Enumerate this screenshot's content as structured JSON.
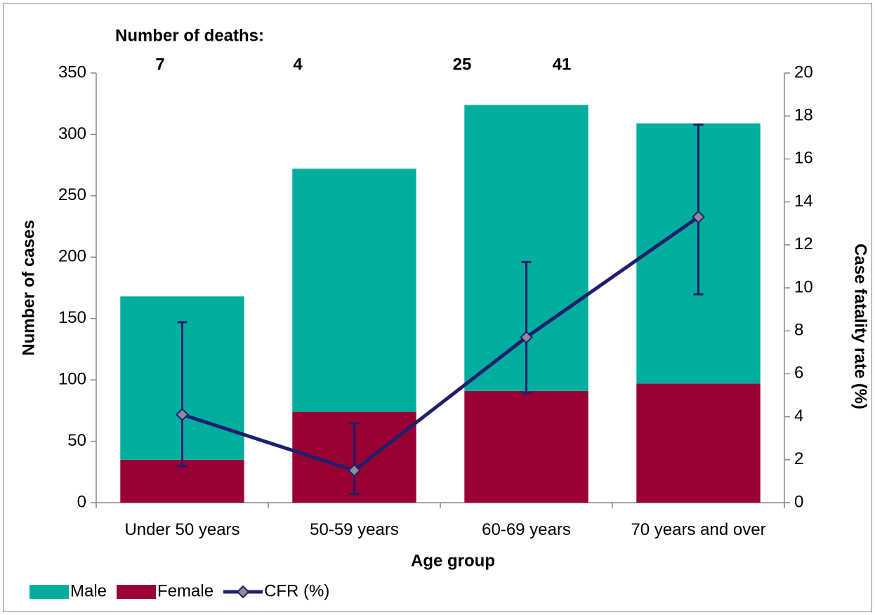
{
  "chart_data": {
    "type": "bar",
    "categories": [
      "Under 50 years",
      "50-59 years",
      "60-69 years",
      "70 years and over"
    ],
    "stacked": true,
    "series": [
      {
        "name": "Male",
        "color": "#00ae9f",
        "values": [
          133,
          198,
          233,
          212
        ]
      },
      {
        "name": "Female",
        "color": "#990033",
        "values": [
          35,
          74,
          91,
          97
        ]
      },
      {
        "name": "CFR (%)",
        "type": "line",
        "axis": "y2",
        "color": "#1f1f6b",
        "marker_color": "#8c8c9c",
        "values": [
          4.1,
          1.5,
          7.7,
          13.3
        ],
        "lower": [
          1.7,
          0.4,
          5.1,
          9.7
        ],
        "upper": [
          8.4,
          3.7,
          11.2,
          17.6
        ]
      }
    ],
    "x_label": "Age group",
    "y_label": "Number of cases",
    "y2_label": "Case fatality rate (%)",
    "ylim": [
      0,
      350
    ],
    "yticks": [
      0,
      50,
      100,
      150,
      200,
      250,
      300,
      350
    ],
    "y2lim": [
      0,
      20
    ],
    "y2ticks": [
      0,
      2,
      4,
      6,
      8,
      10,
      12,
      14,
      16,
      18,
      20
    ],
    "legend": "bottom-left",
    "annotation": {
      "title": "Number of deaths:",
      "values": [
        7,
        4,
        25,
        41
      ]
    }
  }
}
